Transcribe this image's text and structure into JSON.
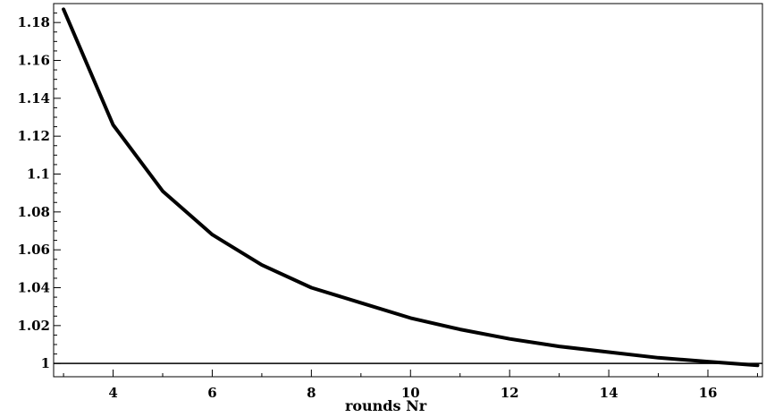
{
  "chart_data": {
    "type": "line",
    "title": "",
    "xlabel": "rounds Nr",
    "ylabel": "",
    "xlim": [
      2.8,
      17.1
    ],
    "ylim": [
      0.993,
      1.19
    ],
    "x_ticks": [
      4,
      6,
      8,
      10,
      12,
      14,
      16
    ],
    "x_tick_labels": [
      "4",
      "6",
      "8",
      "10",
      "12",
      "14",
      "16"
    ],
    "y_ticks": [
      1,
      1.02,
      1.04,
      1.06,
      1.08,
      1.1,
      1.12,
      1.14,
      1.16,
      1.18
    ],
    "y_tick_labels": [
      "1",
      "1.02",
      "1.04",
      "1.06",
      "1.08",
      "1.1",
      "1.12",
      "1.14",
      "1.16",
      "1.18"
    ],
    "grid": false,
    "legend": "none",
    "reference_line": {
      "y": 1,
      "x_range": [
        2.8,
        17.1
      ]
    },
    "series": [
      {
        "x": [
          3,
          4,
          5,
          6,
          7,
          8,
          9,
          10,
          11,
          12,
          13,
          14,
          15,
          16,
          17
        ],
        "y": [
          1.187,
          1.126,
          1.091,
          1.068,
          1.052,
          1.04,
          1.032,
          1.024,
          1.018,
          1.013,
          1.009,
          1.006,
          1.003,
          1.001,
          0.999
        ],
        "color": "#000000"
      }
    ]
  }
}
